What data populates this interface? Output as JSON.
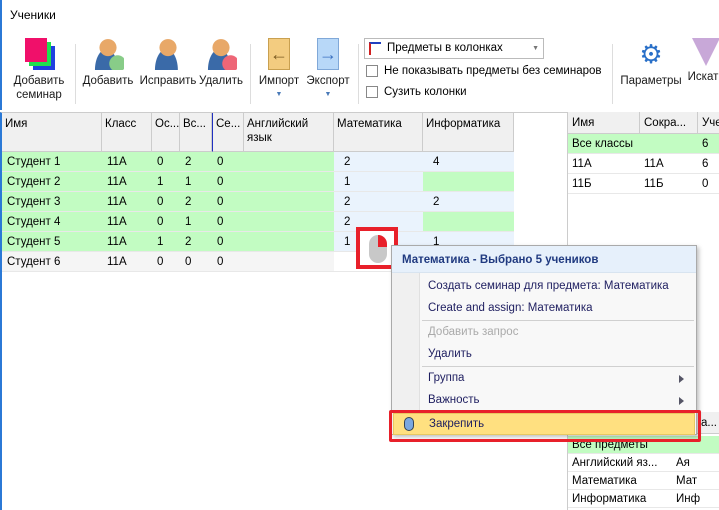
{
  "window": {
    "title": "Ученики"
  },
  "toolbar": {
    "add_seminar": "Добавить семинар",
    "add": "Добавить",
    "edit": "Исправить",
    "delete": "Удалить",
    "import": "Импорт",
    "export": "Экспорт",
    "view_select": "Предметы в колонках",
    "hide_no_seminars": "Не показывать предметы без семинаров",
    "narrow_columns": "Сузить колонки",
    "params": "Параметры",
    "search": "Искать"
  },
  "grid": {
    "columns": [
      "Имя",
      "Класс",
      "Ос...",
      "Вс...",
      "Се...",
      "Английский язык",
      "Математика",
      "Информатика"
    ],
    "rows": [
      [
        "Студент 1",
        "11А",
        "0",
        "2",
        "0",
        "",
        "2",
        "4"
      ],
      [
        "Студент 2",
        "11А",
        "1",
        "1",
        "0",
        "",
        "1",
        ""
      ],
      [
        "Студент 3",
        "11А",
        "0",
        "2",
        "0",
        "",
        "2",
        "2"
      ],
      [
        "Студент 4",
        "11А",
        "0",
        "1",
        "0",
        "",
        "2",
        ""
      ],
      [
        "Студент 5",
        "11А",
        "1",
        "2",
        "0",
        "",
        "1",
        "1"
      ],
      [
        "Студент 6",
        "11А",
        "0",
        "0",
        "0",
        "",
        "",
        ""
      ]
    ]
  },
  "classes": {
    "columns": [
      "Имя",
      "Сокра...",
      "Уче"
    ],
    "rows": [
      [
        "Все классы",
        "",
        "6"
      ],
      [
        "11А",
        "11А",
        "6"
      ],
      [
        "11Б",
        "11Б",
        "0"
      ]
    ]
  },
  "subjects": {
    "header_partial": "а...",
    "rows": [
      [
        "Все предметы",
        ""
      ],
      [
        "Английский яз...",
        "Ая"
      ],
      [
        "Математика",
        "Мат"
      ],
      [
        "Информатика",
        "Инф"
      ]
    ]
  },
  "context_menu": {
    "title": "Математика - Выбрано 5 учеников",
    "items": [
      "Создать семинар для предмета: Математика",
      "Create and assign:  Математика",
      "Добавить запрос",
      "Удалить",
      "Группа",
      "Важность",
      "Закрепить"
    ]
  },
  "colors": {
    "accent": "#2b79d6",
    "selected_row": "#c2fcc2",
    "highlight": "#ffe080",
    "annotation": "#e8202a"
  }
}
